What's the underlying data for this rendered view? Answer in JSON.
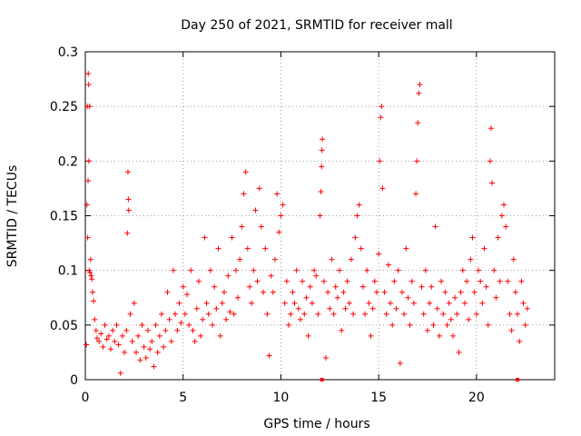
{
  "chart_data": {
    "type": "scatter",
    "title": "Day 250 of 2021, SRMTID for receiver mall",
    "xlabel": "GPS time / hours",
    "ylabel": "SRMTID / TECUs",
    "xlim": [
      0,
      24
    ],
    "ylim": [
      0,
      0.3
    ],
    "grid": true,
    "marker": "plus",
    "color": "#ff0000",
    "x_ticks": [
      {
        "value": 0,
        "label": "0"
      },
      {
        "value": 5,
        "label": "5"
      },
      {
        "value": 10,
        "label": "10"
      },
      {
        "value": 15,
        "label": "15"
      },
      {
        "value": 20,
        "label": "20"
      }
    ],
    "y_ticks": [
      {
        "value": 0,
        "label": "0"
      },
      {
        "value": 0.05,
        "label": "0.05"
      },
      {
        "value": 0.1,
        "label": "0.1"
      },
      {
        "value": 0.15,
        "label": "0.15"
      },
      {
        "value": 0.2,
        "label": "0.2"
      },
      {
        "value": 0.25,
        "label": "0.25"
      },
      {
        "value": 0.3,
        "label": "0.3"
      }
    ],
    "series": [
      {
        "name": "SRMTID",
        "points": [
          [
            0.05,
            0.032
          ],
          [
            0.08,
            0.16
          ],
          [
            0.1,
            0.25
          ],
          [
            0.12,
            0.13
          ],
          [
            0.14,
            0.182
          ],
          [
            0.15,
            0.28
          ],
          [
            0.17,
            0.27
          ],
          [
            0.18,
            0.2
          ],
          [
            0.2,
            0.1
          ],
          [
            0.22,
            0.25
          ],
          [
            0.24,
            0.098
          ],
          [
            0.27,
            0.11
          ],
          [
            0.3,
            0.095
          ],
          [
            0.33,
            0.092
          ],
          [
            0.37,
            0.08
          ],
          [
            0.42,
            0.072
          ],
          [
            0.48,
            0.055
          ],
          [
            0.55,
            0.045
          ],
          [
            0.6,
            0.038
          ],
          [
            0.7,
            0.035
          ],
          [
            0.8,
            0.042
          ],
          [
            0.9,
            0.03
          ],
          [
            1.0,
            0.05
          ],
          [
            1.1,
            0.037
          ],
          [
            1.2,
            0.04
          ],
          [
            1.3,
            0.028
          ],
          [
            1.4,
            0.045
          ],
          [
            1.5,
            0.035
          ],
          [
            1.6,
            0.05
          ],
          [
            1.7,
            0.032
          ],
          [
            1.8,
            0.006
          ],
          [
            1.9,
            0.04
          ],
          [
            2.0,
            0.025
          ],
          [
            2.1,
            0.045
          ],
          [
            2.15,
            0.134
          ],
          [
            2.18,
            0.19
          ],
          [
            2.2,
            0.165
          ],
          [
            2.22,
            0.155
          ],
          [
            2.3,
            0.06
          ],
          [
            2.4,
            0.035
          ],
          [
            2.5,
            0.07
          ],
          [
            2.6,
            0.025
          ],
          [
            2.7,
            0.04
          ],
          [
            2.8,
            0.018
          ],
          [
            2.9,
            0.05
          ],
          [
            3.0,
            0.03
          ],
          [
            3.1,
            0.02
          ],
          [
            3.2,
            0.045
          ],
          [
            3.3,
            0.028
          ],
          [
            3.4,
            0.035
          ],
          [
            3.5,
            0.012
          ],
          [
            3.6,
            0.05
          ],
          [
            3.7,
            0.025
          ],
          [
            3.8,
            0.04
          ],
          [
            3.9,
            0.06
          ],
          [
            4.0,
            0.03
          ],
          [
            4.1,
            0.045
          ],
          [
            4.2,
            0.08
          ],
          [
            4.3,
            0.055
          ],
          [
            4.4,
            0.035
          ],
          [
            4.5,
            0.1
          ],
          [
            4.6,
            0.06
          ],
          [
            4.7,
            0.045
          ],
          [
            4.8,
            0.07
          ],
          [
            4.9,
            0.052
          ],
          [
            5.0,
            0.085
          ],
          [
            5.1,
            0.06
          ],
          [
            5.2,
            0.078
          ],
          [
            5.3,
            0.05
          ],
          [
            5.4,
            0.1
          ],
          [
            5.5,
            0.045
          ],
          [
            5.6,
            0.035
          ],
          [
            5.7,
            0.065
          ],
          [
            5.8,
            0.09
          ],
          [
            5.9,
            0.04
          ],
          [
            6.0,
            0.055
          ],
          [
            6.1,
            0.13
          ],
          [
            6.2,
            0.07
          ],
          [
            6.3,
            0.06
          ],
          [
            6.4,
            0.1
          ],
          [
            6.5,
            0.05
          ],
          [
            6.6,
            0.085
          ],
          [
            6.7,
            0.065
          ],
          [
            6.8,
            0.12
          ],
          [
            6.9,
            0.04
          ],
          [
            7.0,
            0.07
          ],
          [
            7.1,
            0.08
          ],
          [
            7.2,
            0.055
          ],
          [
            7.3,
            0.095
          ],
          [
            7.4,
            0.062
          ],
          [
            7.5,
            0.13
          ],
          [
            7.6,
            0.06
          ],
          [
            7.7,
            0.1
          ],
          [
            7.8,
            0.075
          ],
          [
            7.9,
            0.11
          ],
          [
            8.0,
            0.14
          ],
          [
            8.1,
            0.17
          ],
          [
            8.2,
            0.19
          ],
          [
            8.3,
            0.12
          ],
          [
            8.4,
            0.085
          ],
          [
            8.5,
            0.07
          ],
          [
            8.6,
            0.1
          ],
          [
            8.7,
            0.155
          ],
          [
            8.8,
            0.09
          ],
          [
            8.9,
            0.175
          ],
          [
            9.0,
            0.14
          ],
          [
            9.1,
            0.08
          ],
          [
            9.2,
            0.12
          ],
          [
            9.3,
            0.06
          ],
          [
            9.4,
            0.022
          ],
          [
            9.5,
            0.095
          ],
          [
            9.6,
            0.08
          ],
          [
            9.7,
            0.11
          ],
          [
            9.8,
            0.17
          ],
          [
            9.9,
            0.135
          ],
          [
            10.0,
            0.15
          ],
          [
            10.1,
            0.16
          ],
          [
            10.2,
            0.07
          ],
          [
            10.3,
            0.09
          ],
          [
            10.4,
            0.05
          ],
          [
            10.5,
            0.06
          ],
          [
            10.6,
            0.08
          ],
          [
            10.7,
            0.07
          ],
          [
            10.8,
            0.1
          ],
          [
            10.9,
            0.065
          ],
          [
            11.0,
            0.055
          ],
          [
            11.1,
            0.09
          ],
          [
            11.2,
            0.06
          ],
          [
            11.3,
            0.075
          ],
          [
            11.4,
            0.04
          ],
          [
            11.5,
            0.085
          ],
          [
            11.6,
            0.07
          ],
          [
            11.7,
            0.1
          ],
          [
            11.8,
            0.095
          ],
          [
            11.9,
            0.06
          ],
          [
            12.0,
            0.15
          ],
          [
            12.05,
            0.172
          ],
          [
            12.08,
            0.195
          ],
          [
            12.1,
            0.21
          ],
          [
            12.12,
            0.22
          ],
          [
            12.2,
            0.09
          ],
          [
            12.3,
            0.02
          ],
          [
            12.4,
            0.08
          ],
          [
            12.5,
            0.065
          ],
          [
            12.6,
            0.11
          ],
          [
            12.7,
            0.06
          ],
          [
            12.8,
            0.085
          ],
          [
            12.9,
            0.075
          ],
          [
            13.0,
            0.1
          ],
          [
            13.1,
            0.045
          ],
          [
            13.2,
            0.08
          ],
          [
            13.3,
            0.065
          ],
          [
            13.4,
            0.09
          ],
          [
            13.5,
            0.07
          ],
          [
            13.6,
            0.11
          ],
          [
            13.7,
            0.06
          ],
          [
            13.8,
            0.13
          ],
          [
            13.9,
            0.15
          ],
          [
            14.0,
            0.16
          ],
          [
            14.1,
            0.12
          ],
          [
            14.2,
            0.085
          ],
          [
            14.3,
            0.06
          ],
          [
            14.4,
            0.1
          ],
          [
            14.5,
            0.07
          ],
          [
            14.6,
            0.04
          ],
          [
            14.7,
            0.065
          ],
          [
            14.8,
            0.09
          ],
          [
            14.9,
            0.08
          ],
          [
            15.0,
            0.115
          ],
          [
            15.05,
            0.2
          ],
          [
            15.1,
            0.24
          ],
          [
            15.15,
            0.25
          ],
          [
            15.2,
            0.175
          ],
          [
            15.3,
            0.08
          ],
          [
            15.4,
            0.06
          ],
          [
            15.5,
            0.105
          ],
          [
            15.6,
            0.07
          ],
          [
            15.7,
            0.05
          ],
          [
            15.8,
            0.09
          ],
          [
            15.9,
            0.065
          ],
          [
            16.0,
            0.1
          ],
          [
            16.1,
            0.015
          ],
          [
            16.2,
            0.08
          ],
          [
            16.3,
            0.06
          ],
          [
            16.4,
            0.12
          ],
          [
            16.5,
            0.075
          ],
          [
            16.6,
            0.05
          ],
          [
            16.7,
            0.09
          ],
          [
            16.8,
            0.07
          ],
          [
            16.9,
            0.17
          ],
          [
            16.95,
            0.2
          ],
          [
            17.0,
            0.235
          ],
          [
            17.05,
            0.262
          ],
          [
            17.1,
            0.27
          ],
          [
            17.2,
            0.085
          ],
          [
            17.3,
            0.06
          ],
          [
            17.4,
            0.1
          ],
          [
            17.5,
            0.045
          ],
          [
            17.6,
            0.07
          ],
          [
            17.7,
            0.085
          ],
          [
            17.8,
            0.05
          ],
          [
            17.9,
            0.14
          ],
          [
            18.0,
            0.065
          ],
          [
            18.1,
            0.04
          ],
          [
            18.2,
            0.09
          ],
          [
            18.3,
            0.06
          ],
          [
            18.4,
            0.08
          ],
          [
            18.5,
            0.05
          ],
          [
            18.6,
            0.07
          ],
          [
            18.7,
            0.055
          ],
          [
            18.8,
            0.04
          ],
          [
            18.9,
            0.075
          ],
          [
            19.0,
            0.06
          ],
          [
            19.1,
            0.025
          ],
          [
            19.2,
            0.08
          ],
          [
            19.3,
            0.1
          ],
          [
            19.4,
            0.07
          ],
          [
            19.5,
            0.09
          ],
          [
            19.6,
            0.055
          ],
          [
            19.7,
            0.11
          ],
          [
            19.8,
            0.13
          ],
          [
            19.9,
            0.08
          ],
          [
            20.0,
            0.06
          ],
          [
            20.1,
            0.1
          ],
          [
            20.2,
            0.09
          ],
          [
            20.3,
            0.07
          ],
          [
            20.4,
            0.12
          ],
          [
            20.5,
            0.085
          ],
          [
            20.6,
            0.05
          ],
          [
            20.7,
            0.2
          ],
          [
            20.75,
            0.23
          ],
          [
            20.8,
            0.18
          ],
          [
            20.9,
            0.1
          ],
          [
            21.0,
            0.075
          ],
          [
            21.1,
            0.13
          ],
          [
            21.2,
            0.09
          ],
          [
            21.3,
            0.15
          ],
          [
            21.4,
            0.16
          ],
          [
            21.5,
            0.14
          ],
          [
            21.6,
            0.09
          ],
          [
            21.7,
            0.06
          ],
          [
            21.8,
            0.045
          ],
          [
            21.9,
            0.11
          ],
          [
            22.0,
            0.08
          ],
          [
            22.1,
            0.06
          ],
          [
            22.2,
            0.035
          ],
          [
            22.3,
            0.09
          ],
          [
            22.4,
            0.07
          ],
          [
            22.5,
            0.05
          ],
          [
            22.6,
            0.065
          ]
        ]
      }
    ],
    "zero_markers": [
      12.1,
      22.1
    ]
  }
}
